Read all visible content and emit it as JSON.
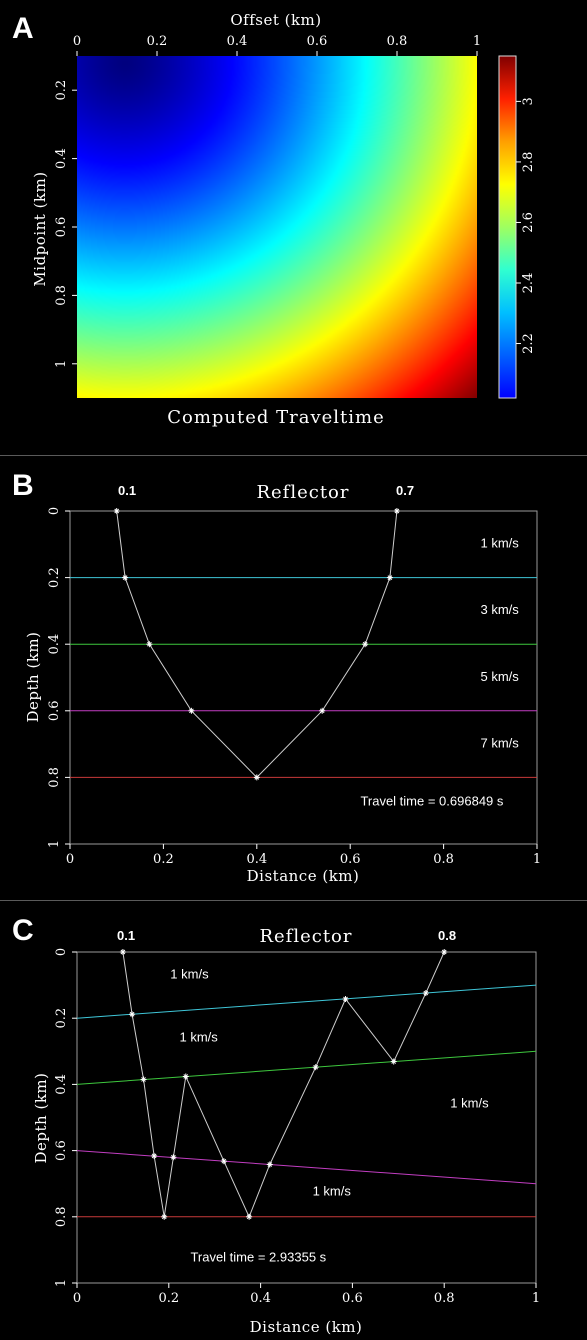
{
  "panels": [
    {
      "letter": "A"
    },
    {
      "letter": "B"
    },
    {
      "letter": "C"
    }
  ],
  "chart_data": [
    {
      "panel": "A",
      "type": "heatmap",
      "title": "Computed Traveltime",
      "xlabel": "Offset (km)",
      "ylabel": "Midpoint (km)",
      "xlim": [
        0,
        1
      ],
      "ylim": [
        0.1,
        1.1
      ],
      "y_reversed": true,
      "x_axis_position": "top",
      "x_ticks": [
        "0",
        "0.2",
        "0.4",
        "0.6",
        "0.8",
        "1"
      ],
      "y_ticks": [
        "0.2",
        "0.4",
        "0.6",
        "0.8",
        "1"
      ],
      "colorbar": {
        "range": [
          2.02,
          3.15
        ],
        "ticks": [
          "2.2",
          "2.4",
          "2.6",
          "2.8",
          "3"
        ],
        "colormap": "jet"
      },
      "value_model": "min at offset 0.12, midpoint 0.12; increases radially to max at offset 1, midpoint 1.1"
    },
    {
      "panel": "B",
      "type": "line",
      "title": "Reflector",
      "xlabel": "Distance (km)",
      "ylabel": "Depth (km)",
      "xlim": [
        0,
        1
      ],
      "ylim": [
        0,
        1
      ],
      "y_reversed": true,
      "x_ticks": [
        "0",
        "0.2",
        "0.4",
        "0.6",
        "0.8",
        "1"
      ],
      "y_ticks": [
        "0",
        "0.2",
        "0.4",
        "0.6",
        "0.8",
        "1"
      ],
      "source_label": "0.1",
      "receiver_label": "0.7",
      "interfaces": [
        {
          "x": [
            0,
            1
          ],
          "y": [
            0.2,
            0.2
          ],
          "color": "#3fc6d8"
        },
        {
          "x": [
            0,
            1
          ],
          "y": [
            0.4,
            0.4
          ],
          "color": "#3ec83e"
        },
        {
          "x": [
            0,
            1
          ],
          "y": [
            0.6,
            0.6
          ],
          "color": "#c23ec2"
        },
        {
          "x": [
            0,
            1
          ],
          "y": [
            0.8,
            0.8
          ],
          "color": "#c83a3a"
        }
      ],
      "ray": {
        "x": [
          0.1,
          0.118,
          0.17,
          0.26,
          0.4,
          0.54,
          0.632,
          0.685,
          0.7
        ],
        "y": [
          0,
          0.2,
          0.4,
          0.6,
          0.8,
          0.6,
          0.4,
          0.2,
          0
        ]
      },
      "annotations": [
        {
          "text": "1 km/s",
          "x": 0.92,
          "y": 0.11
        },
        {
          "text": "3 km/s",
          "x": 0.92,
          "y": 0.31
        },
        {
          "text": "5 km/s",
          "x": 0.92,
          "y": 0.51
        },
        {
          "text": "7 km/s",
          "x": 0.92,
          "y": 0.71
        },
        {
          "text": "Travel time = 0.696849 s",
          "x": 0.775,
          "y": 0.885
        }
      ]
    },
    {
      "panel": "C",
      "type": "line",
      "title": "Reflector",
      "xlabel": "Distance (km)",
      "ylabel": "Depth (km)",
      "xlim": [
        0,
        1
      ],
      "ylim": [
        0,
        1
      ],
      "y_reversed": true,
      "x_ticks": [
        "0",
        "0.2",
        "0.4",
        "0.6",
        "0.8",
        "1"
      ],
      "y_ticks": [
        "0",
        "0.2",
        "0.4",
        "0.6",
        "0.8",
        "1"
      ],
      "source_label": "0.1",
      "receiver_label": "0.8",
      "interfaces": [
        {
          "x": [
            0,
            1
          ],
          "y": [
            0.2,
            0.1
          ],
          "color": "#3fc6d8"
        },
        {
          "x": [
            0,
            1
          ],
          "y": [
            0.4,
            0.3
          ],
          "color": "#3ec83e"
        },
        {
          "x": [
            0,
            1
          ],
          "y": [
            0.6,
            0.7
          ],
          "color": "#c23ec2"
        },
        {
          "x": [
            0,
            1
          ],
          "y": [
            0.8,
            0.8
          ],
          "color": "#c83a3a"
        }
      ],
      "ray": {
        "x": [
          0.1,
          0.12,
          0.145,
          0.168,
          0.19,
          0.21,
          0.237,
          0.32,
          0.375,
          0.42,
          0.52,
          0.585,
          0.69,
          0.76,
          0.8
        ],
        "y": [
          0,
          0.188,
          0.385,
          0.616,
          0.8,
          0.62,
          0.376,
          0.632,
          0.8,
          0.642,
          0.348,
          0.142,
          0.331,
          0.124,
          0
        ]
      },
      "annotations": [
        {
          "text": "1 km/s",
          "x": 0.245,
          "y": 0.08
        },
        {
          "text": "1 km/s",
          "x": 0.265,
          "y": 0.27
        },
        {
          "text": "1 km/s",
          "x": 0.855,
          "y": 0.47
        },
        {
          "text": "1 km/s",
          "x": 0.555,
          "y": 0.735
        },
        {
          "text": "Travel time = 2.93355 s",
          "x": 0.395,
          "y": 0.935
        }
      ]
    }
  ]
}
